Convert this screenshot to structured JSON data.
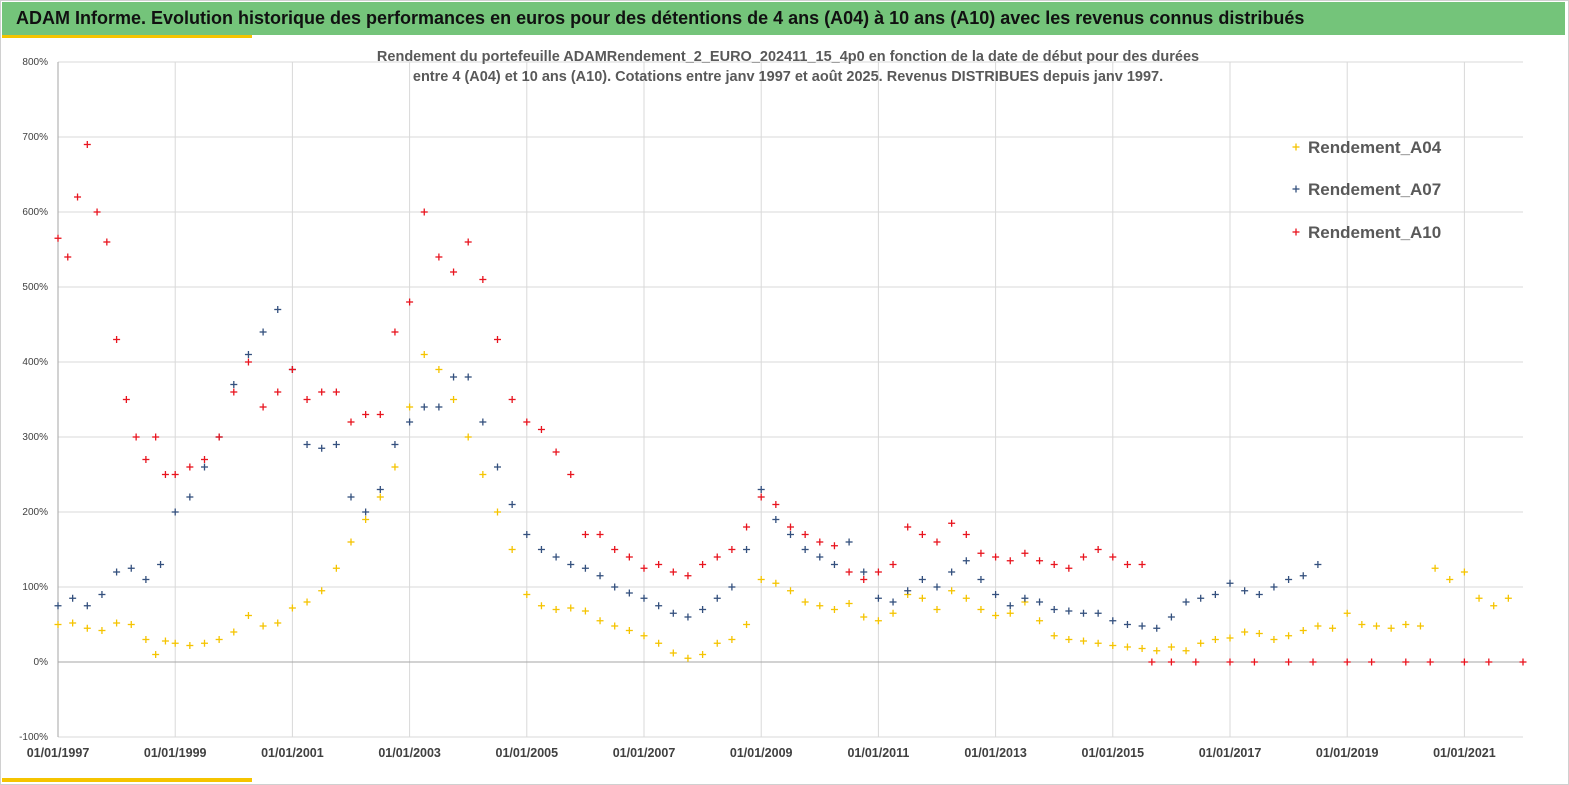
{
  "window": {
    "banner_title": "ADAM Informe. Evolution historique des performances en euros pour des détentions de 4 ans (A04) à 10 ans (A10) avec les revenus connus distribués"
  },
  "colors": {
    "banner": "#74c47a",
    "accent": "#f5c400",
    "A04": "#f5c400",
    "A07": "#34507e",
    "A10": "#e8141e",
    "grid": "#d9d9d9"
  },
  "chart_data": {
    "type": "scatter",
    "title": "",
    "subtitle_lines": [
      "Rendement du portefeuille ADAMRendement_2_EURO_202411_15_4p0  en fonction de la date de début pour  des durées",
      "entre 4 (A04) et 10 ans (A10). Cotations  entre janv 1997 et août 2025. Revenus DISTRIBUES depuis janv 1997."
    ],
    "xlabel": "",
    "ylabel": "",
    "x_type": "date",
    "xlim": [
      "1997-01-01",
      "2022-01-01"
    ],
    "ylim": [
      -100,
      800
    ],
    "y_unit": "%",
    "grid": true,
    "legend_position": "top-right",
    "marker": "+",
    "x_ticks": [
      "01/01/1997",
      "01/01/1999",
      "01/01/2001",
      "01/01/2003",
      "01/01/2005",
      "01/01/2007",
      "01/01/2009",
      "01/01/2011",
      "01/01/2013",
      "01/01/2015",
      "01/01/2017",
      "01/01/2019",
      "01/01/2021"
    ],
    "y_ticks": [
      "800%",
      "700%",
      "600%",
      "500%",
      "400%",
      "300%",
      "200%",
      "100%",
      "0%",
      "-100%"
    ],
    "series": [
      {
        "name": "Rendement_A04",
        "color_key": "A04",
        "points": [
          [
            "1997-01",
            50
          ],
          [
            "1997-04",
            52
          ],
          [
            "1997-07",
            45
          ],
          [
            "1997-10",
            42
          ],
          [
            "1998-01",
            52
          ],
          [
            "1998-04",
            50
          ],
          [
            "1998-07",
            30
          ],
          [
            "1998-09",
            10
          ],
          [
            "1998-11",
            28
          ],
          [
            "1999-01",
            25
          ],
          [
            "1999-04",
            22
          ],
          [
            "1999-07",
            25
          ],
          [
            "1999-10",
            30
          ],
          [
            "2000-01",
            40
          ],
          [
            "2000-04",
            62
          ],
          [
            "2000-07",
            48
          ],
          [
            "2000-10",
            52
          ],
          [
            "2001-01",
            72
          ],
          [
            "2001-04",
            80
          ],
          [
            "2001-07",
            95
          ],
          [
            "2001-10",
            125
          ],
          [
            "2002-01",
            160
          ],
          [
            "2002-04",
            190
          ],
          [
            "2002-07",
            220
          ],
          [
            "2002-10",
            260
          ],
          [
            "2003-01",
            340
          ],
          [
            "2003-04",
            410
          ],
          [
            "2003-07",
            390
          ],
          [
            "2003-10",
            350
          ],
          [
            "2004-01",
            300
          ],
          [
            "2004-04",
            250
          ],
          [
            "2004-07",
            200
          ],
          [
            "2004-10",
            150
          ],
          [
            "2005-01",
            90
          ],
          [
            "2005-04",
            75
          ],
          [
            "2005-07",
            70
          ],
          [
            "2005-10",
            72
          ],
          [
            "2006-01",
            68
          ],
          [
            "2006-04",
            55
          ],
          [
            "2006-07",
            48
          ],
          [
            "2006-10",
            42
          ],
          [
            "2007-01",
            35
          ],
          [
            "2007-04",
            25
          ],
          [
            "2007-07",
            12
          ],
          [
            "2007-10",
            5
          ],
          [
            "2008-01",
            10
          ],
          [
            "2008-04",
            25
          ],
          [
            "2008-07",
            30
          ],
          [
            "2008-10",
            50
          ],
          [
            "2009-01",
            110
          ],
          [
            "2009-04",
            105
          ],
          [
            "2009-07",
            95
          ],
          [
            "2009-10",
            80
          ],
          [
            "2010-01",
            75
          ],
          [
            "2010-04",
            70
          ],
          [
            "2010-07",
            78
          ],
          [
            "2010-10",
            60
          ],
          [
            "2011-01",
            55
          ],
          [
            "2011-04",
            65
          ],
          [
            "2011-07",
            90
          ],
          [
            "2011-10",
            85
          ],
          [
            "2012-01",
            70
          ],
          [
            "2012-04",
            95
          ],
          [
            "2012-07",
            85
          ],
          [
            "2012-10",
            70
          ],
          [
            "2013-01",
            62
          ],
          [
            "2013-04",
            65
          ],
          [
            "2013-07",
            80
          ],
          [
            "2013-10",
            55
          ],
          [
            "2014-01",
            35
          ],
          [
            "2014-04",
            30
          ],
          [
            "2014-07",
            28
          ],
          [
            "2014-10",
            25
          ],
          [
            "2015-01",
            22
          ],
          [
            "2015-04",
            20
          ],
          [
            "2015-07",
            18
          ],
          [
            "2015-10",
            15
          ],
          [
            "2016-01",
            20
          ],
          [
            "2016-04",
            15
          ],
          [
            "2016-07",
            25
          ],
          [
            "2016-10",
            30
          ],
          [
            "2017-01",
            32
          ],
          [
            "2017-04",
            40
          ],
          [
            "2017-07",
            38
          ],
          [
            "2017-10",
            30
          ],
          [
            "2018-01",
            35
          ],
          [
            "2018-04",
            42
          ],
          [
            "2018-07",
            48
          ],
          [
            "2018-10",
            45
          ],
          [
            "2019-01",
            65
          ],
          [
            "2019-04",
            50
          ],
          [
            "2019-07",
            48
          ],
          [
            "2019-10",
            45
          ],
          [
            "2020-01",
            50
          ],
          [
            "2020-04",
            48
          ],
          [
            "2020-07",
            125
          ],
          [
            "2020-10",
            110
          ],
          [
            "2021-01",
            120
          ],
          [
            "2021-04",
            85
          ],
          [
            "2021-07",
            75
          ],
          [
            "2021-10",
            85
          ]
        ]
      },
      {
        "name": "Rendement_A07",
        "color_key": "A07",
        "points": [
          [
            "1997-01",
            75
          ],
          [
            "1997-04",
            85
          ],
          [
            "1997-07",
            75
          ],
          [
            "1997-10",
            90
          ],
          [
            "1998-01",
            120
          ],
          [
            "1998-04",
            125
          ],
          [
            "1998-07",
            110
          ],
          [
            "1998-10",
            130
          ],
          [
            "1999-01",
            200
          ],
          [
            "1999-04",
            220
          ],
          [
            "1999-07",
            260
          ],
          [
            "1999-10",
            300
          ],
          [
            "2000-01",
            370
          ],
          [
            "2000-04",
            410
          ],
          [
            "2000-07",
            440
          ],
          [
            "2000-10",
            470
          ],
          [
            "2001-01",
            390
          ],
          [
            "2001-04",
            290
          ],
          [
            "2001-07",
            285
          ],
          [
            "2001-10",
            290
          ],
          [
            "2002-01",
            220
          ],
          [
            "2002-04",
            200
          ],
          [
            "2002-07",
            230
          ],
          [
            "2002-10",
            290
          ],
          [
            "2003-01",
            320
          ],
          [
            "2003-04",
            340
          ],
          [
            "2003-07",
            340
          ],
          [
            "2003-10",
            380
          ],
          [
            "2004-01",
            380
          ],
          [
            "2004-04",
            320
          ],
          [
            "2004-07",
            260
          ],
          [
            "2004-10",
            210
          ],
          [
            "2005-01",
            170
          ],
          [
            "2005-04",
            150
          ],
          [
            "2005-07",
            140
          ],
          [
            "2005-10",
            130
          ],
          [
            "2006-01",
            125
          ],
          [
            "2006-04",
            115
          ],
          [
            "2006-07",
            100
          ],
          [
            "2006-10",
            92
          ],
          [
            "2007-01",
            85
          ],
          [
            "2007-04",
            75
          ],
          [
            "2007-07",
            65
          ],
          [
            "2007-10",
            60
          ],
          [
            "2008-01",
            70
          ],
          [
            "2008-04",
            85
          ],
          [
            "2008-07",
            100
          ],
          [
            "2008-10",
            150
          ],
          [
            "2009-01",
            230
          ],
          [
            "2009-04",
            190
          ],
          [
            "2009-07",
            170
          ],
          [
            "2009-10",
            150
          ],
          [
            "2010-01",
            140
          ],
          [
            "2010-04",
            130
          ],
          [
            "2010-07",
            160
          ],
          [
            "2010-10",
            120
          ],
          [
            "2011-01",
            85
          ],
          [
            "2011-04",
            80
          ],
          [
            "2011-07",
            95
          ],
          [
            "2011-10",
            110
          ],
          [
            "2012-01",
            100
          ],
          [
            "2012-04",
            120
          ],
          [
            "2012-07",
            135
          ],
          [
            "2012-10",
            110
          ],
          [
            "2013-01",
            90
          ],
          [
            "2013-04",
            75
          ],
          [
            "2013-07",
            85
          ],
          [
            "2013-10",
            80
          ],
          [
            "2014-01",
            70
          ],
          [
            "2014-04",
            68
          ],
          [
            "2014-07",
            65
          ],
          [
            "2014-10",
            65
          ],
          [
            "2015-01",
            55
          ],
          [
            "2015-04",
            50
          ],
          [
            "2015-07",
            48
          ],
          [
            "2015-10",
            45
          ],
          [
            "2016-01",
            60
          ],
          [
            "2016-04",
            80
          ],
          [
            "2016-07",
            85
          ],
          [
            "2016-10",
            90
          ],
          [
            "2017-01",
            105
          ],
          [
            "2017-04",
            95
          ],
          [
            "2017-07",
            90
          ],
          [
            "2017-10",
            100
          ],
          [
            "2018-01",
            110
          ],
          [
            "2018-04",
            115
          ],
          [
            "2018-07",
            130
          ]
        ]
      },
      {
        "name": "Rendement_A10",
        "color_key": "A10",
        "points": [
          [
            "1997-01",
            565
          ],
          [
            "1997-03",
            540
          ],
          [
            "1997-05",
            620
          ],
          [
            "1997-07",
            690
          ],
          [
            "1997-09",
            600
          ],
          [
            "1997-11",
            560
          ],
          [
            "1998-01",
            430
          ],
          [
            "1998-03",
            350
          ],
          [
            "1998-05",
            300
          ],
          [
            "1998-07",
            270
          ],
          [
            "1998-09",
            300
          ],
          [
            "1998-11",
            250
          ],
          [
            "1999-01",
            250
          ],
          [
            "1999-04",
            260
          ],
          [
            "1999-07",
            270
          ],
          [
            "1999-10",
            300
          ],
          [
            "2000-01",
            360
          ],
          [
            "2000-04",
            400
          ],
          [
            "2000-07",
            340
          ],
          [
            "2000-10",
            360
          ],
          [
            "2001-01",
            390
          ],
          [
            "2001-04",
            350
          ],
          [
            "2001-07",
            360
          ],
          [
            "2001-10",
            360
          ],
          [
            "2002-01",
            320
          ],
          [
            "2002-04",
            330
          ],
          [
            "2002-07",
            330
          ],
          [
            "2002-10",
            440
          ],
          [
            "2003-01",
            480
          ],
          [
            "2003-04",
            600
          ],
          [
            "2003-07",
            540
          ],
          [
            "2003-10",
            520
          ],
          [
            "2004-01",
            560
          ],
          [
            "2004-04",
            510
          ],
          [
            "2004-07",
            430
          ],
          [
            "2004-10",
            350
          ],
          [
            "2005-01",
            320
          ],
          [
            "2005-04",
            310
          ],
          [
            "2005-07",
            280
          ],
          [
            "2005-10",
            250
          ],
          [
            "2006-01",
            170
          ],
          [
            "2006-04",
            170
          ],
          [
            "2006-07",
            150
          ],
          [
            "2006-10",
            140
          ],
          [
            "2007-01",
            125
          ],
          [
            "2007-04",
            130
          ],
          [
            "2007-07",
            120
          ],
          [
            "2007-10",
            115
          ],
          [
            "2008-01",
            130
          ],
          [
            "2008-04",
            140
          ],
          [
            "2008-07",
            150
          ],
          [
            "2008-10",
            180
          ],
          [
            "2009-01",
            220
          ],
          [
            "2009-04",
            210
          ],
          [
            "2009-07",
            180
          ],
          [
            "2009-10",
            170
          ],
          [
            "2010-01",
            160
          ],
          [
            "2010-04",
            155
          ],
          [
            "2010-07",
            120
          ],
          [
            "2010-10",
            110
          ],
          [
            "2011-01",
            120
          ],
          [
            "2011-04",
            130
          ],
          [
            "2011-07",
            180
          ],
          [
            "2011-10",
            170
          ],
          [
            "2012-01",
            160
          ],
          [
            "2012-04",
            185
          ],
          [
            "2012-07",
            170
          ],
          [
            "2012-10",
            145
          ],
          [
            "2013-01",
            140
          ],
          [
            "2013-04",
            135
          ],
          [
            "2013-07",
            145
          ],
          [
            "2013-10",
            135
          ],
          [
            "2014-01",
            130
          ],
          [
            "2014-04",
            125
          ],
          [
            "2014-07",
            140
          ],
          [
            "2014-10",
            150
          ],
          [
            "2015-01",
            140
          ],
          [
            "2015-04",
            130
          ],
          [
            "2015-07",
            130
          ],
          [
            "2015-09",
            0
          ],
          [
            "2016-01",
            0
          ],
          [
            "2016-06",
            0
          ],
          [
            "2017-01",
            0
          ],
          [
            "2017-06",
            0
          ],
          [
            "2018-01",
            0
          ],
          [
            "2018-06",
            0
          ],
          [
            "2019-01",
            0
          ],
          [
            "2019-06",
            0
          ],
          [
            "2020-01",
            0
          ],
          [
            "2020-06",
            0
          ],
          [
            "2021-01",
            0
          ],
          [
            "2021-06",
            0
          ],
          [
            "2022-01",
            0
          ]
        ]
      }
    ]
  }
}
